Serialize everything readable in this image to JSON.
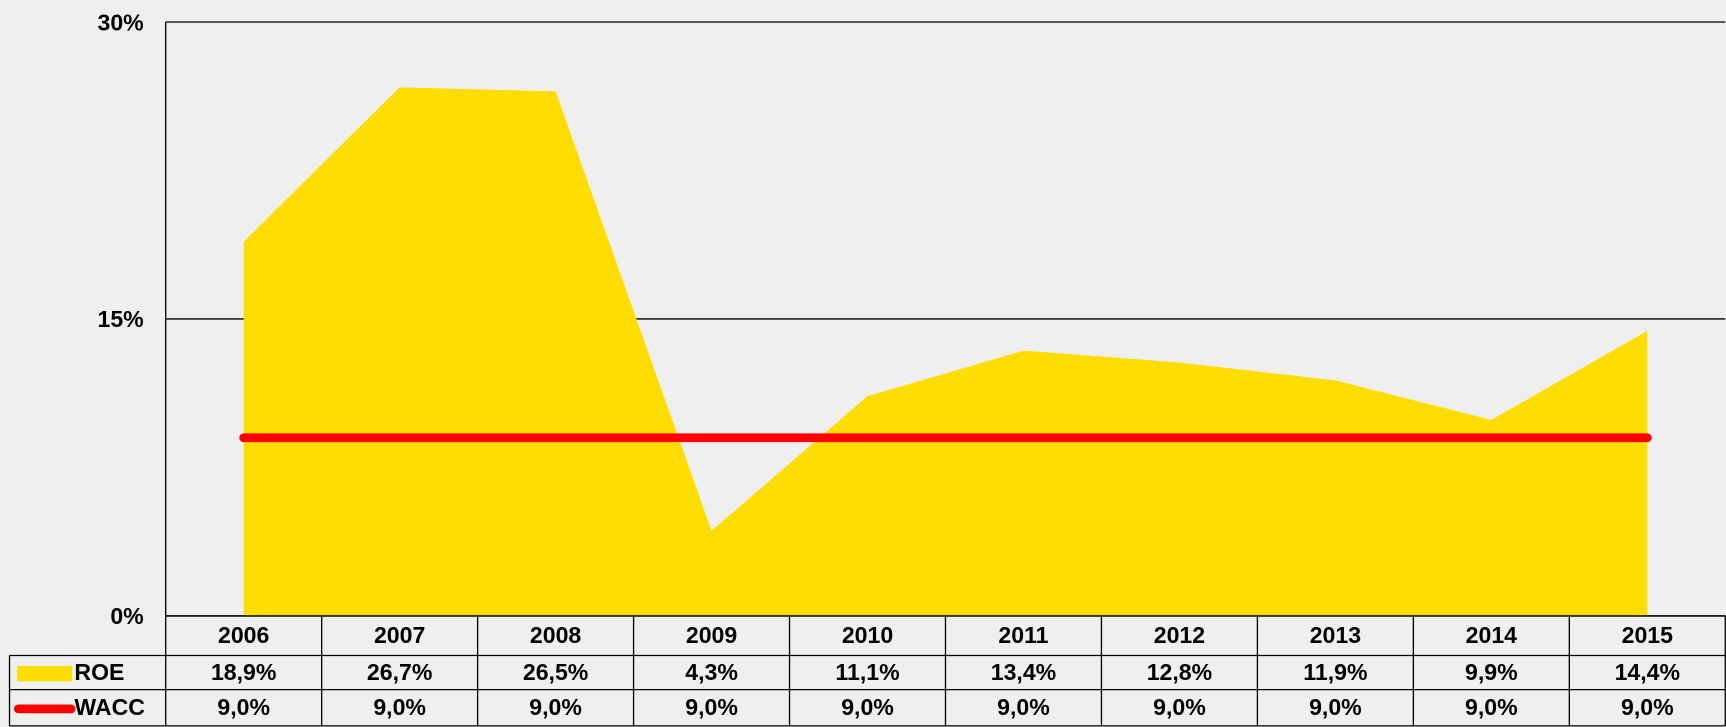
{
  "chart_data": {
    "type": "area",
    "categories": [
      "2006",
      "2007",
      "2008",
      "2009",
      "2010",
      "2011",
      "2012",
      "2013",
      "2014",
      "2015"
    ],
    "series": [
      {
        "name": "ROE",
        "type": "area",
        "color": "#ffdd00",
        "values": [
          18.9,
          26.7,
          26.5,
          4.3,
          11.1,
          13.4,
          12.8,
          11.9,
          9.9,
          14.4
        ],
        "value_labels": [
          "18,9%",
          "26,7%",
          "26,5%",
          "4,3%",
          "11,1%",
          "13,4%",
          "12,8%",
          "11,9%",
          "9,9%",
          "14,4%"
        ]
      },
      {
        "name": "WACC",
        "type": "line",
        "color": "#ff0000",
        "values": [
          9.0,
          9.0,
          9.0,
          9.0,
          9.0,
          9.0,
          9.0,
          9.0,
          9.0,
          9.0
        ],
        "value_labels": [
          "9,0%",
          "9,0%",
          "9,0%",
          "9,0%",
          "9,0%",
          "9,0%",
          "9,0%",
          "9,0%",
          "9,0%",
          "9,0%"
        ]
      }
    ],
    "ylim": [
      0,
      30
    ],
    "yticks": [
      {
        "value": 0,
        "label": "0%"
      },
      {
        "value": 15,
        "label": "15%"
      },
      {
        "value": 30,
        "label": "30%"
      }
    ],
    "grid": true,
    "data_table": true
  }
}
